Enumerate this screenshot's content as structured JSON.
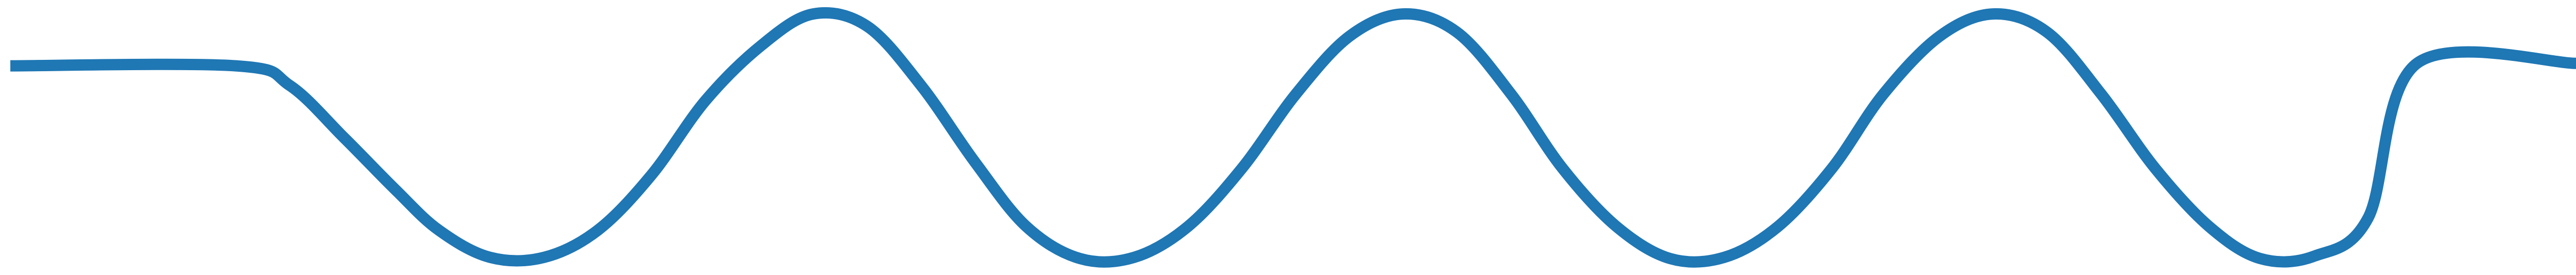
{
  "chart_data": {
    "type": "line",
    "title": "",
    "xlabel": "",
    "ylabel": "",
    "xlim": [
      0,
      100
    ],
    "ylim": [
      -1.05,
      1.05
    ],
    "grid": false,
    "legend": "none",
    "axes_visible": false,
    "series": [
      {
        "color": "#1f77b4",
        "x": [
          0,
          8.8,
          10.9,
          13,
          15,
          16.7,
          18.7,
          20.8,
          22.9,
          25,
          27.1,
          29.3,
          31.3,
          33.4,
          35.5,
          37.6,
          39.6,
          41.7,
          43.8,
          45.9,
          48,
          50.1,
          52.2,
          54.3,
          56.4,
          58.5,
          60.5,
          62.6,
          64.7,
          66.8,
          68.9,
          71,
          73,
          75.2,
          77.3,
          79.4,
          81.5,
          83.6,
          85.7,
          87.7,
          89.8,
          91.9,
          93.8,
          100
        ],
        "y": [
          0.58,
          0.58,
          0.42,
          0,
          -0.42,
          -0.75,
          -0.97,
          -0.97,
          -0.75,
          -0.3,
          0.3,
          0.75,
          1.0,
          0.9,
          0.42,
          -0.2,
          -0.72,
          -0.98,
          -0.97,
          -0.72,
          -0.25,
          0.35,
          0.82,
          1.0,
          0.85,
          0.35,
          -0.25,
          -0.72,
          -0.98,
          -0.97,
          -0.72,
          -0.25,
          0.35,
          0.82,
          1.0,
          0.85,
          0.35,
          -0.25,
          -0.72,
          -0.98,
          -0.96,
          -0.65,
          0.6,
          0.6
        ]
      }
    ]
  }
}
